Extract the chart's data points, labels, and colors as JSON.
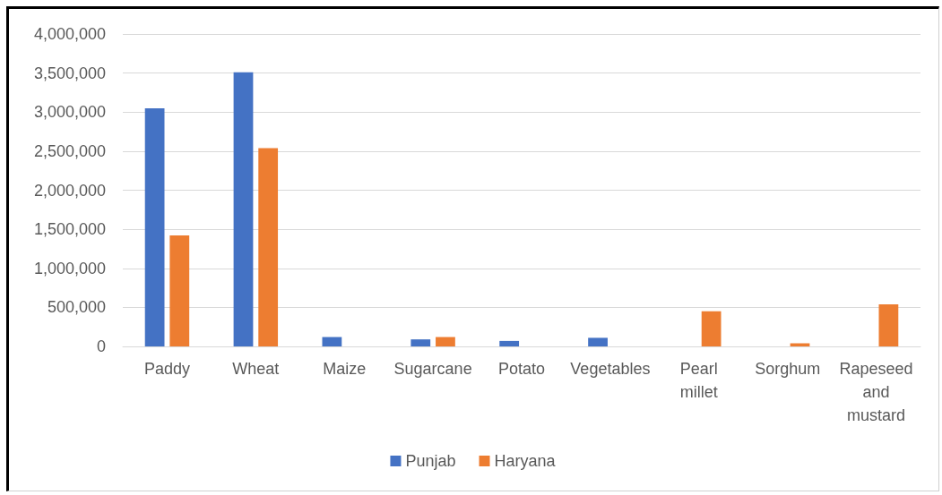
{
  "chart_data": {
    "type": "bar",
    "categories": [
      "Paddy",
      "Wheat",
      "Maize",
      "Sugarcane",
      "Potato",
      "Vegetables",
      "Pearl millet",
      "Sorghum",
      "Rapeseed and mustard"
    ],
    "series": [
      {
        "name": "Punjab",
        "color": "#4472c4",
        "values": [
          3050000,
          3510000,
          120000,
          90000,
          70000,
          110000,
          null,
          null,
          null
        ]
      },
      {
        "name": "Haryana",
        "color": "#ed7d31",
        "values": [
          1420000,
          2540000,
          null,
          120000,
          null,
          null,
          450000,
          40000,
          540000
        ]
      }
    ],
    "ylim": [
      0,
      4000000
    ],
    "yticks": [
      {
        "value": 0,
        "label": "0"
      },
      {
        "value": 500000,
        "label": "500,000"
      },
      {
        "value": 1000000,
        "label": "1,000,000"
      },
      {
        "value": 1500000,
        "label": "1,500,000"
      },
      {
        "value": 2000000,
        "label": "2,000,000"
      },
      {
        "value": 2500000,
        "label": "2,500,000"
      },
      {
        "value": 3000000,
        "label": "3,000,000"
      },
      {
        "value": 3500000,
        "label": "3,500,000"
      },
      {
        "value": 4000000,
        "label": "4,000,000"
      }
    ],
    "grid": "y",
    "legend": "bottom"
  }
}
